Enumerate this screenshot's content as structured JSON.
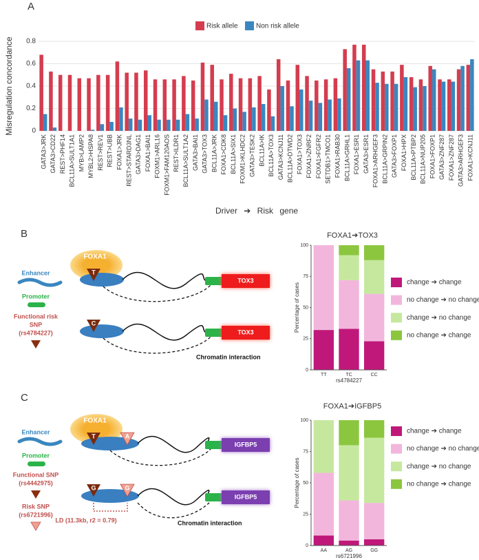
{
  "panel_labels": [
    "A",
    "B",
    "C"
  ],
  "chart_data": [
    {
      "type": "bar",
      "ylabel": "Misregulation concordance",
      "xlabel": "Driver ➔ Risk gene",
      "categories": [
        "GATA3>JRK",
        "GATA3>CD22",
        "REST>PHF14",
        "BCL11A>SULT1A1",
        "MYB>LAMP2",
        "MYBL2>HSPA8",
        "REST>REV1",
        "REST>UBB",
        "FOXA1>JRK",
        "REST>STARD3NL",
        "GATA3>DAG1",
        "FOXA1>BAI1",
        "FOXM1>ARL16",
        "FOXM1>FAM120AOS",
        "REST>ILDR1",
        "BCL11A>SULT1A2",
        "GATA3>BAI1",
        "GATA3>TOX3",
        "BCL11A>JRK",
        "FOXA1>CDK8",
        "BCL11A>SIX1",
        "FOXM1>KLHDC2",
        "GATA3>TESK2",
        "BCL11A>IK",
        "BCL11A>TOX3",
        "GATA3>KCNJ11",
        "BCL11A>DTWD2",
        "FOXA1>TOX3",
        "FOXA1>ZNRF2",
        "FOXA1>FGFR2",
        "SETDB1>TMCO1",
        "FOXA1>RAB30",
        "BCL11A>GRHL1",
        "FOXA1>ESR1",
        "GATA3>ESR1",
        "FOXA1>ARHGEF3",
        "BCL11A>GRPIN2",
        "GATA3>FOXP1",
        "FOXA1>HPX",
        "BCL11A>PTBP2",
        "BCL11A>NUP205",
        "FOXA1>FOXP1",
        "GATA3>ZNF287",
        "FOXA1>ZNF287",
        "GATA3>ARHGEF3",
        "FOXA1>KCNJ11"
      ],
      "series": [
        {
          "name": "Risk allele",
          "color": "#d43d4f",
          "values": [
            0.68,
            0.53,
            0.5,
            0.5,
            0.47,
            0.47,
            0.5,
            0.5,
            0.62,
            0.52,
            0.52,
            0.54,
            0.46,
            0.46,
            0.46,
            0.49,
            0.45,
            0.61,
            0.59,
            0.46,
            0.51,
            0.47,
            0.47,
            0.49,
            0.37,
            0.64,
            0.45,
            0.59,
            0.49,
            0.45,
            0.46,
            0.47,
            0.73,
            0.77,
            0.77,
            0.55,
            0.53,
            0.53,
            0.59,
            0.48,
            0.46,
            0.58,
            0.46,
            0.46,
            0.55,
            0.59
          ]
        },
        {
          "name": "Non risk allele",
          "color": "#3a87c0",
          "values": [
            0.15,
            0.03,
            0,
            0,
            0,
            0.01,
            0.06,
            0.08,
            0.21,
            0.11,
            0.1,
            0.14,
            0.1,
            0.1,
            0.1,
            0.15,
            0.11,
            0.28,
            0.26,
            0.14,
            0.2,
            0.17,
            0.21,
            0.24,
            0.13,
            0.4,
            0.22,
            0.37,
            0.27,
            0.25,
            0.28,
            0.29,
            0.56,
            0.63,
            0.63,
            0.43,
            0.42,
            0.42,
            0.48,
            0.39,
            0.4,
            0.55,
            0.44,
            0.44,
            0.58,
            0.64
          ]
        }
      ],
      "ylim": [
        0,
        0.8
      ],
      "yticks": [
        0,
        0.2,
        0.4,
        0.6,
        0.8
      ],
      "grid": true,
      "legend": "top"
    },
    {
      "type": "stacked_bar",
      "title": "FOXA1➔TOX3",
      "ylabel": "Percentage of cases",
      "xlabel": "rs4784227",
      "categories": [
        "TT",
        "TC",
        "CC"
      ],
      "series": [
        {
          "name": "change ➔ change",
          "color": "#c0187a",
          "values": [
            32,
            33,
            23
          ]
        },
        {
          "name": "no change ➔ no change",
          "color": "#f2b6dc",
          "values": [
            68,
            39,
            38
          ]
        },
        {
          "name": "change ➔ no change",
          "color": "#c6e89e",
          "values": [
            0,
            20,
            27
          ]
        },
        {
          "name": "no change ➔ change",
          "color": "#8cc63f",
          "values": [
            0,
            8,
            12
          ]
        }
      ],
      "ylim": [
        0,
        100
      ],
      "yticks": [
        0,
        25,
        50,
        75,
        100
      ],
      "legend": "right"
    },
    {
      "type": "stacked_bar",
      "title": "FOXA1➔IGFBP5",
      "ylabel": "Percentage of cases",
      "xlabel": "rs6721996",
      "categories": [
        "AA",
        "AG",
        "GG"
      ],
      "series": [
        {
          "name": "change ➔ change",
          "color": "#c0187a",
          "values": [
            8,
            4,
            5
          ]
        },
        {
          "name": "no change ➔ no change",
          "color": "#f2b6dc",
          "values": [
            50,
            32,
            29
          ]
        },
        {
          "name": "change ➔ no change",
          "color": "#c6e89e",
          "values": [
            42,
            44,
            52
          ]
        },
        {
          "name": "no change ➔ change",
          "color": "#8cc63f",
          "values": [
            0,
            20,
            14
          ]
        }
      ],
      "ylim": [
        0,
        100
      ],
      "yticks": [
        0,
        25,
        50,
        75,
        100
      ],
      "legend": "right"
    }
  ],
  "diagrams": [
    {
      "enhancer": "Enhancer",
      "promoter": "Promoter",
      "snp_lines": [
        "Functional risk",
        "SNP",
        "(rs4784227)"
      ],
      "tf": "FOXA1",
      "alleles": [
        "T",
        "C"
      ],
      "gene": "TOX3",
      "interaction": "Chromatin interaction"
    },
    {
      "enhancer": "Enhancer",
      "promoter": "Promoter",
      "snp_lines": [
        "Functional SNP",
        "(rs4442975)"
      ],
      "risk_snp_lines": [
        "Risk SNP",
        "(rs6721996)"
      ],
      "tf": "FOXA1",
      "alleles": [
        "T",
        "A",
        "G",
        "G"
      ],
      "gene": "IGFBP5",
      "ld": "LD (11.3kb, r2 = 0.79)",
      "interaction": "Chromatin interaction"
    }
  ]
}
